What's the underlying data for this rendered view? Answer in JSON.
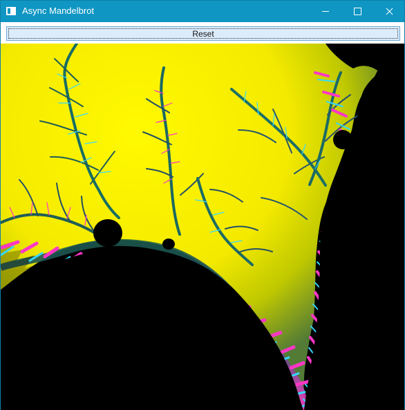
{
  "window": {
    "title": "Async Mandelbrot"
  },
  "toolbar": {
    "reset_label": "Reset"
  },
  "colors": {
    "titlebar": "#0f96c3",
    "window_border": "#0f7fa8",
    "reset_fill": "#dcecfb",
    "reset_border": "#6aa7d6",
    "fractal_inside": "#000000",
    "fractal_outer": "#ffef00",
    "fractal_mid": "#2f6f5b",
    "fractal_edge_magenta": "#ff3cc8",
    "fractal_edge_cyan": "#31d9ff"
  },
  "icons": {
    "app": "app-window-icon",
    "minimize": "minimize-icon",
    "maximize": "maximize-icon",
    "close": "close-icon"
  }
}
